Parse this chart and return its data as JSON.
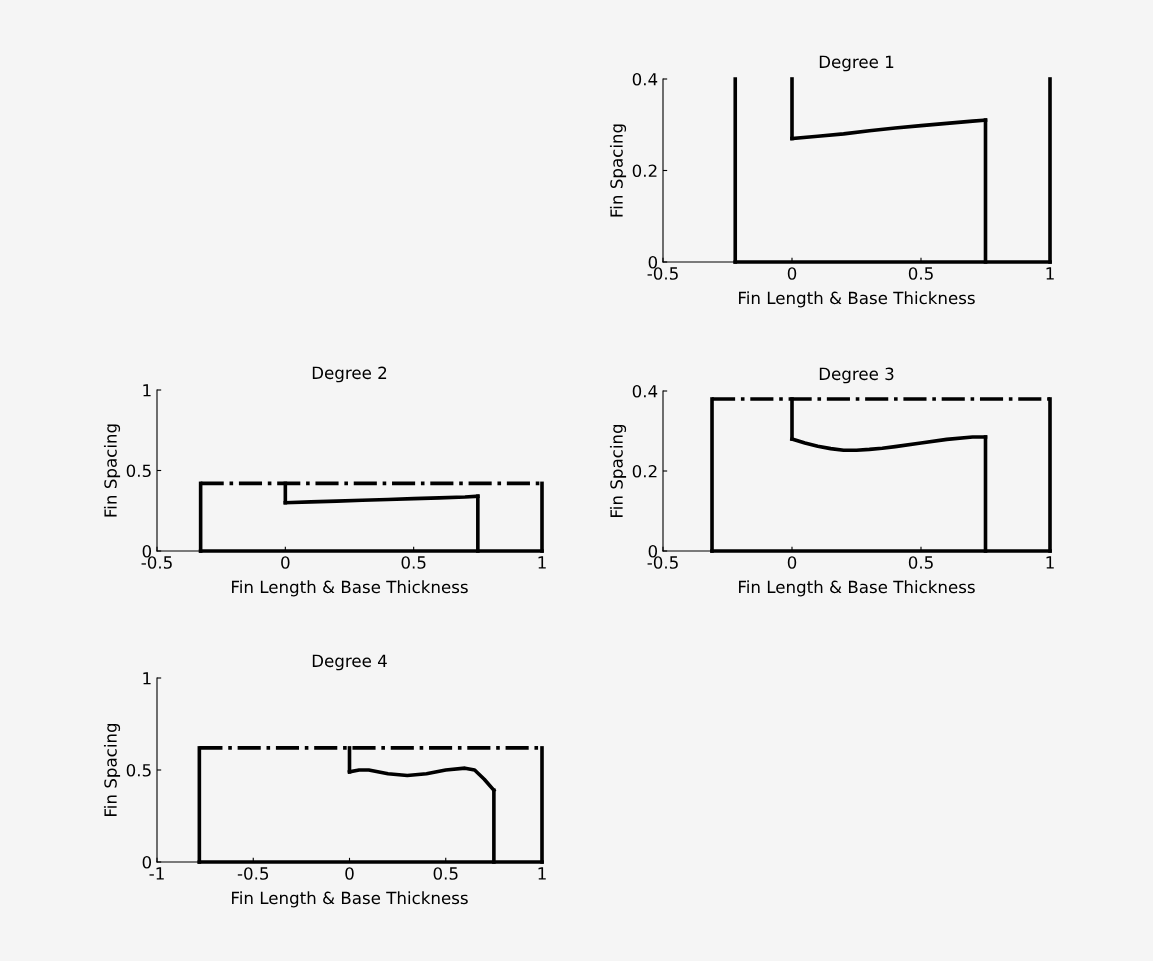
{
  "chart_data": [
    {
      "type": "line",
      "title": "Degree 1",
      "xlabel": "Fin Length & Base Thickness",
      "ylabel": "Fin Spacing",
      "xlim": [
        -0.5,
        1
      ],
      "ylim": [
        0,
        0.4
      ],
      "xticks": [
        -0.5,
        0,
        0.5,
        1
      ],
      "yticks": [
        0,
        0.2,
        0.4
      ],
      "color": "#000000",
      "series": [
        {
          "x": [
            -0.22,
            1
          ],
          "values": [
            0,
            0
          ],
          "line_style": "solid"
        },
        {
          "x": [
            -0.22,
            -0.22
          ],
          "values": [
            0,
            0.4
          ],
          "line_style": "solid"
        },
        {
          "x": [
            1,
            1
          ],
          "values": [
            0,
            0.4
          ],
          "line_style": "solid"
        },
        {
          "x": [
            0,
            0
          ],
          "values": [
            0.4,
            0.27
          ],
          "line_style": "solid"
        },
        {
          "x": [
            0,
            0.1,
            0.2,
            0.3,
            0.4,
            0.5,
            0.6,
            0.7,
            0.75
          ],
          "values": [
            0.27,
            0.275,
            0.28,
            0.287,
            0.293,
            0.298,
            0.303,
            0.308,
            0.31
          ],
          "line_style": "solid"
        },
        {
          "x": [
            0.75,
            0.75
          ],
          "values": [
            0.31,
            0
          ],
          "line_style": "solid"
        }
      ]
    },
    {
      "type": "line",
      "title": "Degree 2",
      "xlabel": "Fin Length & Base Thickness",
      "ylabel": "Fin Spacing",
      "xlim": [
        -0.5,
        1
      ],
      "ylim": [
        0,
        1
      ],
      "xticks": [
        -0.5,
        0,
        0.5,
        1
      ],
      "yticks": [
        0,
        0.5,
        1
      ],
      "color": "#000000",
      "series": [
        {
          "x": [
            -0.33,
            1
          ],
          "values": [
            0,
            0
          ],
          "line_style": "solid"
        },
        {
          "x": [
            -0.33,
            -0.33
          ],
          "values": [
            0,
            0.42
          ],
          "line_style": "solid"
        },
        {
          "x": [
            1,
            1
          ],
          "values": [
            0,
            0.42
          ],
          "line_style": "solid"
        },
        {
          "x": [
            -0.33,
            1
          ],
          "values": [
            0.42,
            0.42
          ],
          "line_style": "dashdot"
        },
        {
          "x": [
            0,
            0
          ],
          "values": [
            0.42,
            0.3
          ],
          "line_style": "solid"
        },
        {
          "x": [
            0,
            0.1,
            0.2,
            0.3,
            0.4,
            0.5,
            0.6,
            0.7,
            0.75
          ],
          "values": [
            0.3,
            0.305,
            0.31,
            0.315,
            0.32,
            0.325,
            0.33,
            0.335,
            0.34
          ],
          "line_style": "solid"
        },
        {
          "x": [
            0.75,
            0.75
          ],
          "values": [
            0.34,
            0
          ],
          "line_style": "solid"
        }
      ]
    },
    {
      "type": "line",
      "title": "Degree 3",
      "xlabel": "Fin Length & Base Thickness",
      "ylabel": "Fin Spacing",
      "xlim": [
        -0.5,
        1
      ],
      "ylim": [
        0,
        0.4
      ],
      "xticks": [
        -0.5,
        0,
        0.5,
        1
      ],
      "yticks": [
        0,
        0.2,
        0.4
      ],
      "color": "#000000",
      "series": [
        {
          "x": [
            -0.31,
            1
          ],
          "values": [
            0,
            0
          ],
          "line_style": "solid"
        },
        {
          "x": [
            -0.31,
            -0.31
          ],
          "values": [
            0,
            0.38
          ],
          "line_style": "solid"
        },
        {
          "x": [
            1,
            1
          ],
          "values": [
            0,
            0.38
          ],
          "line_style": "solid"
        },
        {
          "x": [
            -0.31,
            1
          ],
          "values": [
            0.38,
            0.38
          ],
          "line_style": "dashdot"
        },
        {
          "x": [
            0,
            0
          ],
          "values": [
            0.38,
            0.28
          ],
          "line_style": "solid"
        },
        {
          "x": [
            0,
            0.05,
            0.1,
            0.15,
            0.2,
            0.25,
            0.3,
            0.35,
            0.4,
            0.5,
            0.6,
            0.7,
            0.75
          ],
          "values": [
            0.28,
            0.27,
            0.262,
            0.256,
            0.252,
            0.252,
            0.254,
            0.257,
            0.261,
            0.27,
            0.279,
            0.285,
            0.285
          ],
          "line_style": "solid"
        },
        {
          "x": [
            0.75,
            0.75
          ],
          "values": [
            0.285,
            0
          ],
          "line_style": "solid"
        }
      ]
    },
    {
      "type": "line",
      "title": "Degree 4",
      "xlabel": "Fin Length & Base Thickness",
      "ylabel": "Fin Spacing",
      "xlim": [
        -1,
        1
      ],
      "ylim": [
        0,
        1
      ],
      "xticks": [
        -1,
        -0.5,
        0,
        0.5,
        1
      ],
      "yticks": [
        0,
        0.5,
        1
      ],
      "color": "#000000",
      "series": [
        {
          "x": [
            -0.78,
            1
          ],
          "values": [
            0,
            0
          ],
          "line_style": "solid"
        },
        {
          "x": [
            -0.78,
            -0.78
          ],
          "values": [
            0,
            0.62
          ],
          "line_style": "solid"
        },
        {
          "x": [
            1,
            1
          ],
          "values": [
            0,
            0.62
          ],
          "line_style": "solid"
        },
        {
          "x": [
            -0.78,
            1
          ],
          "values": [
            0.62,
            0.62
          ],
          "line_style": "dashdot"
        },
        {
          "x": [
            0,
            0
          ],
          "values": [
            0.62,
            0.49
          ],
          "line_style": "solid"
        },
        {
          "x": [
            0,
            0.05,
            0.1,
            0.2,
            0.3,
            0.4,
            0.5,
            0.6,
            0.65,
            0.7,
            0.75
          ],
          "values": [
            0.49,
            0.5,
            0.5,
            0.48,
            0.47,
            0.48,
            0.5,
            0.51,
            0.5,
            0.45,
            0.39
          ],
          "line_style": "solid"
        },
        {
          "x": [
            0.75,
            0.75
          ],
          "values": [
            0.39,
            0
          ],
          "line_style": "solid"
        }
      ]
    }
  ]
}
